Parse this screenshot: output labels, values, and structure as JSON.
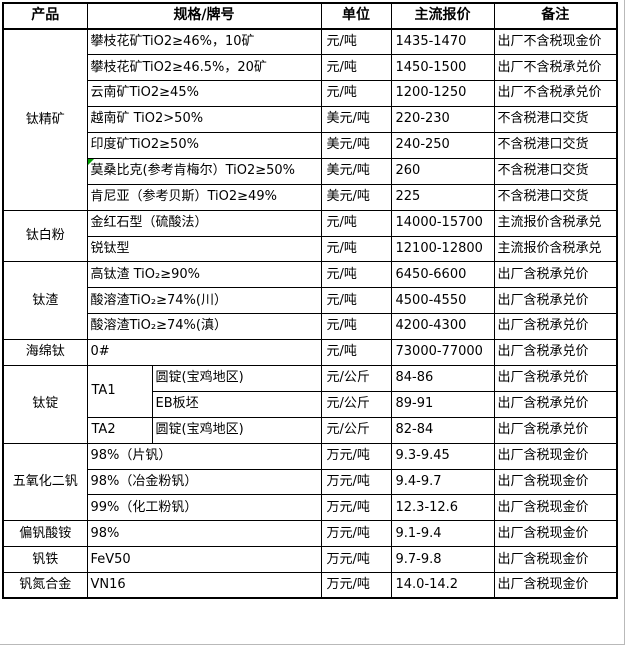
{
  "canvas": {
    "background_color": "#ffffff",
    "edge_color": "#b9b9b9"
  },
  "table_style": {
    "border_color": "#000000",
    "comment_marker_color": "#00a000",
    "comment_marker_icon": "comment-indicator-icon"
  },
  "table": {
    "headers": [
      "产品",
      "规格/牌号",
      "单位",
      "主流报价",
      "备注"
    ],
    "groups": [
      {
        "product": "钛精矿",
        "rows": [
          {
            "spec": "攀枝花矿TiO2≥46%，10矿",
            "unit": "元/吨",
            "price": "1435-1470",
            "note": "出厂不含税现金价"
          },
          {
            "spec": "攀枝花矿TiO2≥46.5%，20矿",
            "unit": "元/吨",
            "price": "1450-1500",
            "note": "出厂不含税承兑价"
          },
          {
            "spec": "云南矿TiO2≥45%",
            "unit": "元/吨",
            "price": "1200-1250",
            "note": "出厂不含税承兑价"
          },
          {
            "spec": "越南矿 TiO2>50%",
            "unit": "美元/吨",
            "price": "220-230",
            "note": "不含税港口交货"
          },
          {
            "spec": "印度矿TiO2≥50%",
            "unit": "美元/吨",
            "price": "240-250",
            "note": "不含税港口交货"
          },
          {
            "spec": "莫桑比克(参考肯梅尔）TiO2≥50%",
            "unit": "美元/吨",
            "price": "260",
            "note": "不含税港口交货",
            "comment_marker": true
          },
          {
            "spec": "肯尼亚（参考贝斯）TiO2≥49%",
            "unit": "美元/吨",
            "price": "225",
            "note": "不含税港口交货"
          }
        ]
      },
      {
        "product": "钛白粉",
        "rows": [
          {
            "spec": "金红石型（硫酸法）",
            "unit": "元/吨",
            "price": "14000-15700",
            "note": "主流报价含税承兑"
          },
          {
            "spec": "锐钛型",
            "unit": "元/吨",
            "price": "12100-12800",
            "note": "主流报价含税承兑"
          }
        ]
      },
      {
        "product": "钛渣",
        "rows": [
          {
            "spec": "高钛渣 TiO₂≥90%",
            "unit": "元/吨",
            "price": "6450-6600",
            "note": "出厂含税承兑价"
          },
          {
            "spec": "酸溶渣TiO₂≥74%(川）",
            "unit": "元/吨",
            "price": "4500-4550",
            "note": "出厂含税承兑价"
          },
          {
            "spec": "酸溶渣TiO₂≥74%(滇）",
            "unit": "元/吨",
            "price": "4200-4300",
            "note": "出厂含税承兑价"
          }
        ]
      },
      {
        "product": "海绵钛",
        "rows": [
          {
            "spec": "0#",
            "unit": "元/吨",
            "price": "73000-77000",
            "note": "出厂含税承兑价"
          }
        ]
      },
      {
        "product": "钛锭",
        "rows": [
          {
            "grade": "TA1",
            "grade_span": 2,
            "spec": "圆锭(宝鸡地区)",
            "unit": "元/公斤",
            "price": "84-86",
            "note": "出厂含税承兑价"
          },
          {
            "in_grade": true,
            "spec": "EB板坯",
            "unit": "元/公斤",
            "price": "89-91",
            "note": "出厂含税承兑价"
          },
          {
            "grade": "TA2",
            "grade_span": 1,
            "spec": "圆锭(宝鸡地区)",
            "unit": "元/公斤",
            "price": "82-84",
            "note": "出厂含税承兑价"
          }
        ]
      },
      {
        "product": "五氧化二钒",
        "rows": [
          {
            "spec": "98%（片钒）",
            "unit": "万元/吨",
            "price": "9.3-9.45",
            "note": "出厂含税现金价"
          },
          {
            "spec": "98%（冶金粉钒）",
            "unit": "万元/吨",
            "price": "9.4-9.7",
            "note": "出厂含税现金价"
          },
          {
            "spec": "99%（化工粉钒）",
            "unit": "万元/吨",
            "price": "12.3-12.6",
            "note": "出厂含税现金价"
          }
        ]
      },
      {
        "product": "偏钒酸铵",
        "rows": [
          {
            "spec": "98%",
            "unit": "万元/吨",
            "price": "9.1-9.4",
            "note": "出厂含税现金价"
          }
        ]
      },
      {
        "product": "钒铁",
        "rows": [
          {
            "spec": "FeV50",
            "unit": "万元/吨",
            "price": "9.7-9.8",
            "note": "出厂含税现金价"
          }
        ]
      },
      {
        "product": "钒氮合金",
        "rows": [
          {
            "spec": "VN16",
            "unit": "万元/吨",
            "price": "14.0-14.2",
            "note": "出厂含税现金价"
          }
        ]
      }
    ]
  }
}
